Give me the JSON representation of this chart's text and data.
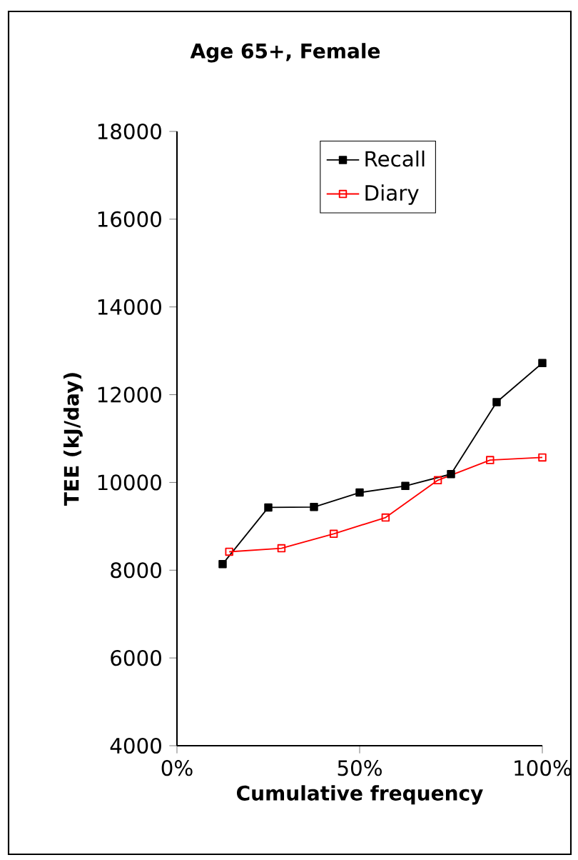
{
  "chart_data": {
    "type": "line",
    "title": "Age 65+, Female",
    "xlabel": "Cumulative frequency",
    "ylabel": "TEE (kJ/day)",
    "xlim": [
      0,
      100
    ],
    "xticks": [
      {
        "value": 0,
        "label": "0%"
      },
      {
        "value": 50,
        "label": "50%"
      },
      {
        "value": 100,
        "label": "100%"
      }
    ],
    "ylim": [
      4000,
      18000
    ],
    "yticks": [
      4000,
      6000,
      8000,
      10000,
      12000,
      14000,
      16000,
      18000
    ],
    "legend": "top",
    "marker": "square",
    "grid": false,
    "series": [
      {
        "name": "Recall",
        "color": "#000000",
        "x": [
          12.5,
          25,
          37.5,
          50,
          62.5,
          75,
          87.5,
          100
        ],
        "values": [
          8140,
          9430,
          9440,
          9770,
          9920,
          10190,
          11830,
          12720
        ]
      },
      {
        "name": "Diary",
        "color": "#ff0000",
        "x": [
          14.3,
          28.6,
          42.9,
          57.1,
          71.4,
          85.7,
          100
        ],
        "values": [
          8420,
          8500,
          8830,
          9200,
          10050,
          10510,
          10570
        ]
      }
    ]
  }
}
